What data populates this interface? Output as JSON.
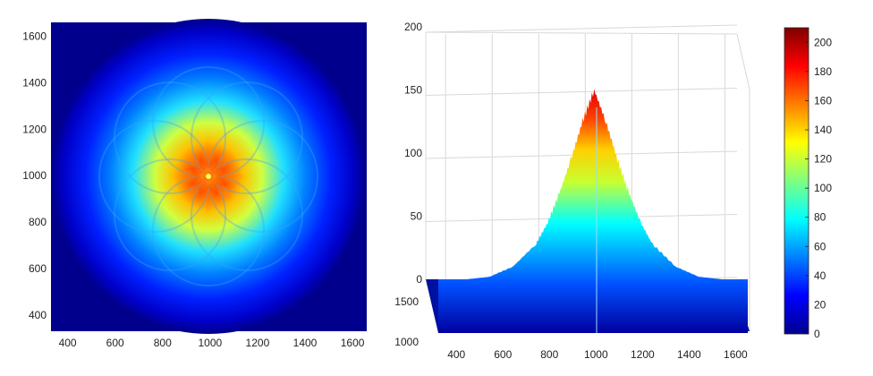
{
  "chart_data": [
    {
      "type": "heatmap",
      "xlim": [
        330,
        1660
      ],
      "ylim": [
        330,
        1660
      ],
      "xticks": [
        400,
        600,
        800,
        1000,
        1200,
        1400,
        1600
      ],
      "yticks": [
        400,
        600,
        800,
        1000,
        1200,
        1400,
        1600
      ],
      "center": [
        1000,
        1000
      ],
      "peak_value": 210,
      "colormap": "jet",
      "background_value": 0
    },
    {
      "type": "area",
      "xlim": [
        330,
        1660
      ],
      "zlim": [
        0,
        200
      ],
      "xticks": [
        400,
        600,
        800,
        1000,
        1200,
        1400,
        1600
      ],
      "yticks": [
        1000,
        1500
      ],
      "zticks": [
        0,
        50,
        100,
        150,
        200
      ],
      "profile": {
        "x": [
          330,
          450,
          550,
          650,
          750,
          800,
          850,
          900,
          950,
          1000,
          1050,
          1100,
          1150,
          1200,
          1250,
          1350,
          1450,
          1550,
          1660
        ],
        "z": [
          0,
          0,
          2,
          10,
          28,
          45,
          68,
          95,
          125,
          150,
          125,
          95,
          68,
          45,
          28,
          10,
          2,
          0,
          0
        ]
      },
      "grid": true
    }
  ],
  "colorbar": {
    "min": 0,
    "max": 210,
    "ticks": [
      0,
      20,
      40,
      60,
      80,
      100,
      120,
      140,
      160,
      180,
      200
    ],
    "colormap": "jet"
  }
}
